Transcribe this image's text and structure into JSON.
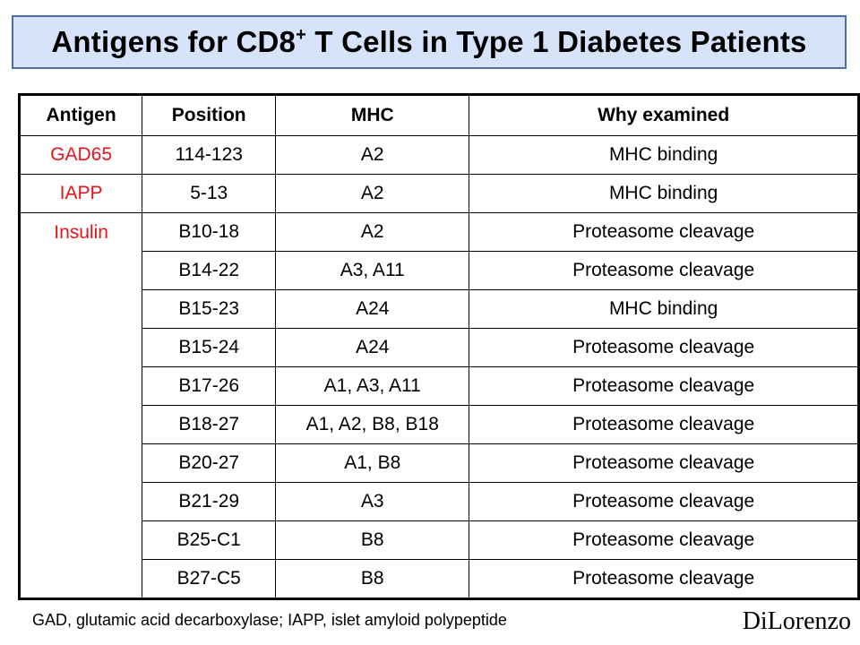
{
  "title": {
    "prefix": "Antigens for CD8",
    "superscript": "+",
    "suffix": " T Cells in Type 1 Diabetes Patients"
  },
  "table": {
    "headers": [
      "Antigen",
      "Position",
      "MHC",
      "Why examined"
    ],
    "rows": [
      {
        "antigen": "GAD65",
        "position": "114-123",
        "mhc": "A2",
        "why": "MHC binding"
      },
      {
        "antigen": "IAPP",
        "position": "5-13",
        "mhc": "A2",
        "why": "MHC binding"
      },
      {
        "antigen": "Insulin",
        "position": "B10-18",
        "mhc": "A2",
        "why": "Proteasome cleavage"
      },
      {
        "antigen": "",
        "position": "B14-22",
        "mhc": "A3, A11",
        "why": "Proteasome cleavage"
      },
      {
        "antigen": "",
        "position": "B15-23",
        "mhc": "A24",
        "why": "MHC binding"
      },
      {
        "antigen": "",
        "position": "B15-24",
        "mhc": "A24",
        "why": "Proteasome cleavage"
      },
      {
        "antigen": "",
        "position": "B17-26",
        "mhc": "A1, A3, A11",
        "why": "Proteasome cleavage"
      },
      {
        "antigen": "",
        "position": "B18-27",
        "mhc": "A1, A2, B8, B18",
        "why": "Proteasome cleavage"
      },
      {
        "antigen": "",
        "position": "B20-27",
        "mhc": "A1, B8",
        "why": "Proteasome cleavage"
      },
      {
        "antigen": "",
        "position": "B21-29",
        "mhc": "A3",
        "why": "Proteasome cleavage"
      },
      {
        "antigen": "",
        "position": "B25-C1",
        "mhc": "B8",
        "why": "Proteasome cleavage"
      },
      {
        "antigen": "",
        "position": "B27-C5",
        "mhc": "B8",
        "why": "Proteasome cleavage"
      }
    ]
  },
  "footnote": "GAD, glutamic acid decarboxylase; IAPP, islet amyloid polypeptide",
  "signature": "DiLorenzo",
  "colors": {
    "title_background": "#d6e3fa",
    "title_border": "#4f6ea8",
    "antigen_text": "#e8141b"
  }
}
